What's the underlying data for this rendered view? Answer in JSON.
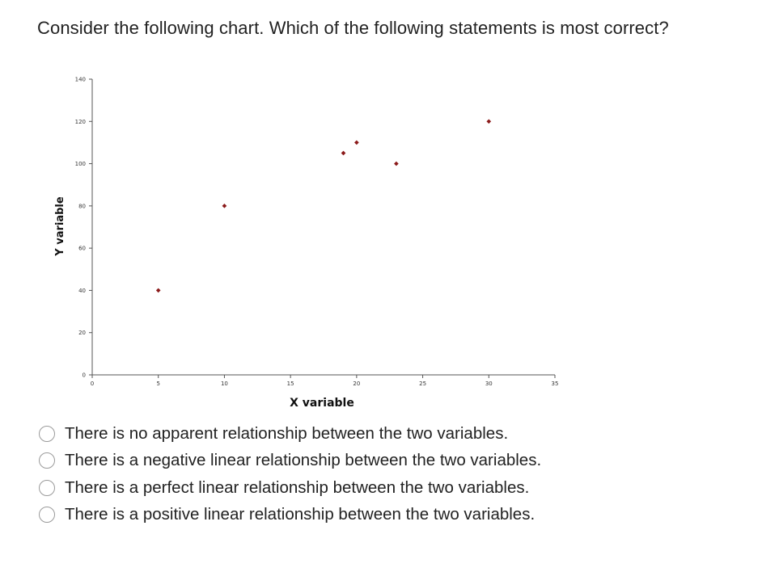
{
  "question": "Consider the following chart. Which of the following statements is most correct?",
  "chart_data": {
    "type": "scatter",
    "xlabel": "X variable",
    "ylabel": "Y variable",
    "xlim": [
      0,
      35
    ],
    "ylim": [
      0,
      140
    ],
    "xticks": [
      0,
      5,
      10,
      15,
      20,
      25,
      30,
      35
    ],
    "yticks": [
      0,
      20,
      40,
      60,
      80,
      100,
      120,
      140
    ],
    "grid": false,
    "marker_color": "#8b1a1a",
    "points": [
      {
        "x": 5,
        "y": 40
      },
      {
        "x": 10,
        "y": 80
      },
      {
        "x": 19,
        "y": 105
      },
      {
        "x": 20,
        "y": 110
      },
      {
        "x": 23,
        "y": 100
      },
      {
        "x": 30,
        "y": 120
      }
    ]
  },
  "options": [
    {
      "label": "There is no apparent relationship between the two variables."
    },
    {
      "label": "There is a negative linear relationship between the two variables."
    },
    {
      "label": "There is a perfect linear relationship between the two variables."
    },
    {
      "label": "There is a positive linear relationship between the two variables."
    }
  ]
}
